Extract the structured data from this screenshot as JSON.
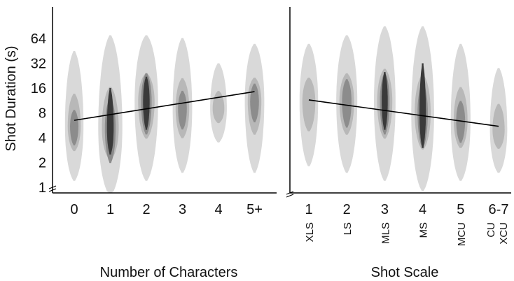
{
  "chart_data": [
    {
      "type": "violin-density",
      "title": "",
      "xlabel": "Number of Characters",
      "ylabel": "Shot Duration (s)",
      "y_scale": "log2",
      "y_ticks": [
        "1",
        "2",
        "4",
        "8",
        "16",
        "32",
        "64"
      ],
      "y_tick_values": [
        1,
        2,
        4,
        8,
        16,
        32,
        64
      ],
      "categories": [
        "0",
        "1",
        "2",
        "3",
        "4",
        "5+"
      ],
      "sublabels": [],
      "density": [
        {
          "median": 5.5,
          "range": [
            1.2,
            45
          ],
          "spread": 0.42,
          "peak": 0.55,
          "core": null
        },
        {
          "median": 5.2,
          "range": [
            0.8,
            70
          ],
          "spread": 0.6,
          "peak": 1.0,
          "core": [
            2.5,
            16
          ]
        },
        {
          "median": 11,
          "range": [
            1.2,
            70
          ],
          "spread": 0.58,
          "peak": 0.95,
          "core": [
            5,
            22
          ]
        },
        {
          "median": 9,
          "range": [
            1.5,
            65
          ],
          "spread": 0.45,
          "peak": 0.6,
          "core": null
        },
        {
          "median": 9,
          "range": [
            3.5,
            32
          ],
          "spread": 0.36,
          "peak": 0.45,
          "core": null
        },
        {
          "median": 11,
          "range": [
            1.5,
            55
          ],
          "spread": 0.45,
          "peak": 0.6,
          "core": null
        }
      ],
      "trend_line": {
        "x": [
          0,
          5
        ],
        "y": [
          6.5,
          14.5
        ]
      }
    },
    {
      "type": "violin-density",
      "title": "",
      "xlabel": "Shot Scale",
      "ylabel": "",
      "y_scale": "log2",
      "categories": [
        "1",
        "2",
        "3",
        "4",
        "5",
        "6-7"
      ],
      "sublabels": [
        "XLS",
        "LS",
        "MLS",
        "MS",
        "MCU",
        "CU\nXCU"
      ],
      "density": [
        {
          "median": 11,
          "range": [
            1.8,
            55
          ],
          "spread": 0.42,
          "peak": 0.5,
          "core": null
        },
        {
          "median": 11,
          "range": [
            1.5,
            70
          ],
          "spread": 0.5,
          "peak": 0.75,
          "core": null
        },
        {
          "median": 11,
          "range": [
            1.2,
            90
          ],
          "spread": 0.52,
          "peak": 0.95,
          "core": [
            5,
            25
          ]
        },
        {
          "median": 8,
          "range": [
            0.9,
            90
          ],
          "spread": 0.56,
          "peak": 1.0,
          "core": [
            3,
            32
          ]
        },
        {
          "median": 6.5,
          "range": [
            1.2,
            55
          ],
          "spread": 0.46,
          "peak": 0.65,
          "core": null
        },
        {
          "median": 5,
          "range": [
            1.5,
            28
          ],
          "spread": 0.38,
          "peak": 0.45,
          "core": null
        }
      ],
      "trend_line": {
        "x": [
          0,
          5
        ],
        "y": [
          11.5,
          5.5
        ]
      }
    }
  ],
  "colors": {
    "density_levels": [
      "#d9d9d9",
      "#b8b8b8",
      "#8c8c8c",
      "#3a3a3a"
    ],
    "axis": "#000000",
    "trend": "#000000"
  }
}
